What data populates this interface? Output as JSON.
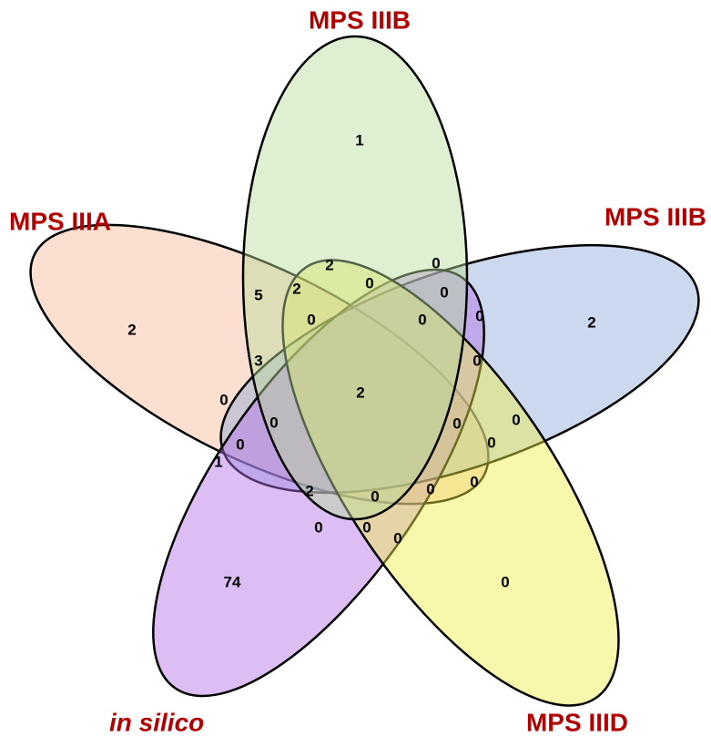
{
  "sets": [
    {
      "name": "MPS IIIA",
      "color": "#f7b99a"
    },
    {
      "name": "MPS IIIB",
      "color": "#8fa8d8"
    },
    {
      "name": "in silico",
      "color": "#b26ee8"
    },
    {
      "name": "MPS IIID",
      "color": "#f0f04a"
    },
    {
      "name": "MPS IIIB",
      "color": "#b7dc98"
    }
  ],
  "regions": [
    1,
    2,
    2,
    74,
    0,
    2,
    5,
    2,
    0,
    0,
    0,
    0,
    0,
    0,
    3,
    0,
    2,
    0,
    0,
    0,
    0,
    0,
    0,
    1,
    0,
    2,
    0,
    0,
    0,
    0,
    0
  ]
}
